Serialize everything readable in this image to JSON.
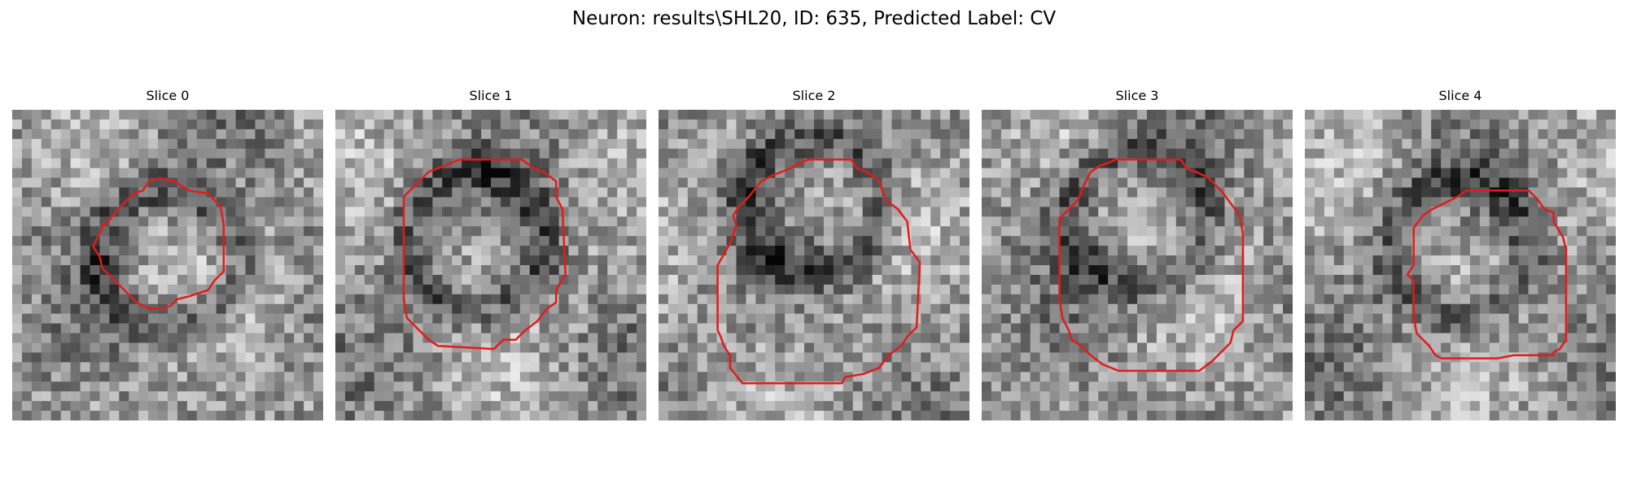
{
  "figure": {
    "title": "Neuron: results\\SHL20, ID: 635, Predicted Label: CV",
    "contour_color": "#e31b1b"
  },
  "panels": [
    {
      "title": "Slice 0",
      "seed": 11,
      "dark_center": [
        0.5,
        0.48
      ],
      "contour": [
        [
          0.47,
          0.22
        ],
        [
          0.52,
          0.23
        ],
        [
          0.57,
          0.26
        ],
        [
          0.63,
          0.27
        ],
        [
          0.67,
          0.31
        ],
        [
          0.68,
          0.37
        ],
        [
          0.68,
          0.52
        ],
        [
          0.65,
          0.55
        ],
        [
          0.63,
          0.58
        ],
        [
          0.57,
          0.6
        ],
        [
          0.53,
          0.61
        ],
        [
          0.51,
          0.63
        ],
        [
          0.48,
          0.64
        ],
        [
          0.44,
          0.64
        ],
        [
          0.4,
          0.62
        ],
        [
          0.37,
          0.59
        ],
        [
          0.34,
          0.56
        ],
        [
          0.29,
          0.51
        ],
        [
          0.28,
          0.47
        ],
        [
          0.26,
          0.44
        ],
        [
          0.27,
          0.42
        ],
        [
          0.29,
          0.38
        ],
        [
          0.29,
          0.37
        ],
        [
          0.3,
          0.37
        ],
        [
          0.34,
          0.32
        ],
        [
          0.39,
          0.27
        ],
        [
          0.42,
          0.26
        ],
        [
          0.44,
          0.23
        ]
      ]
    },
    {
      "title": "Slice 1",
      "seed": 23,
      "dark_center": [
        0.45,
        0.42
      ],
      "contour": [
        [
          0.4,
          0.16
        ],
        [
          0.6,
          0.16
        ],
        [
          0.64,
          0.19
        ],
        [
          0.67,
          0.2
        ],
        [
          0.71,
          0.23
        ],
        [
          0.71,
          0.28
        ],
        [
          0.73,
          0.32
        ],
        [
          0.74,
          0.53
        ],
        [
          0.71,
          0.58
        ],
        [
          0.71,
          0.62
        ],
        [
          0.68,
          0.64
        ],
        [
          0.65,
          0.68
        ],
        [
          0.61,
          0.71
        ],
        [
          0.58,
          0.74
        ],
        [
          0.54,
          0.74
        ],
        [
          0.54,
          0.74
        ],
        [
          0.51,
          0.77
        ],
        [
          0.33,
          0.76
        ],
        [
          0.33,
          0.76
        ],
        [
          0.3,
          0.74
        ],
        [
          0.27,
          0.71
        ],
        [
          0.23,
          0.67
        ],
        [
          0.22,
          0.61
        ],
        [
          0.22,
          0.28
        ],
        [
          0.3,
          0.2
        ],
        [
          0.35,
          0.18
        ]
      ]
    },
    {
      "title": "Slice 2",
      "seed": 37,
      "dark_center": [
        0.5,
        0.3
      ],
      "contour": [
        [
          0.48,
          0.16
        ],
        [
          0.62,
          0.16
        ],
        [
          0.64,
          0.19
        ],
        [
          0.67,
          0.2
        ],
        [
          0.71,
          0.23
        ],
        [
          0.73,
          0.29
        ],
        [
          0.77,
          0.32
        ],
        [
          0.8,
          0.36
        ],
        [
          0.81,
          0.45
        ],
        [
          0.84,
          0.49
        ],
        [
          0.83,
          0.7
        ],
        [
          0.8,
          0.73
        ],
        [
          0.78,
          0.76
        ],
        [
          0.74,
          0.79
        ],
        [
          0.71,
          0.83
        ],
        [
          0.66,
          0.85
        ],
        [
          0.6,
          0.86
        ],
        [
          0.59,
          0.88
        ],
        [
          0.27,
          0.88
        ],
        [
          0.23,
          0.83
        ],
        [
          0.23,
          0.79
        ],
        [
          0.21,
          0.76
        ],
        [
          0.2,
          0.73
        ],
        [
          0.19,
          0.71
        ],
        [
          0.19,
          0.5
        ],
        [
          0.23,
          0.43
        ],
        [
          0.25,
          0.37
        ],
        [
          0.24,
          0.34
        ],
        [
          0.26,
          0.31
        ],
        [
          0.29,
          0.28
        ],
        [
          0.33,
          0.23
        ],
        [
          0.37,
          0.21
        ],
        [
          0.42,
          0.19
        ]
      ]
    },
    {
      "title": "Slice 3",
      "seed": 53,
      "dark_center": [
        0.5,
        0.35
      ],
      "contour": [
        [
          0.43,
          0.16
        ],
        [
          0.64,
          0.16
        ],
        [
          0.66,
          0.19
        ],
        [
          0.69,
          0.2
        ],
        [
          0.73,
          0.22
        ],
        [
          0.77,
          0.26
        ],
        [
          0.8,
          0.3
        ],
        [
          0.83,
          0.34
        ],
        [
          0.84,
          0.4
        ],
        [
          0.84,
          0.68
        ],
        [
          0.81,
          0.71
        ],
        [
          0.8,
          0.75
        ],
        [
          0.77,
          0.78
        ],
        [
          0.74,
          0.81
        ],
        [
          0.7,
          0.84
        ],
        [
          0.66,
          0.84
        ],
        [
          0.63,
          0.84
        ],
        [
          0.6,
          0.84
        ],
        [
          0.56,
          0.84
        ],
        [
          0.44,
          0.84
        ],
        [
          0.39,
          0.82
        ],
        [
          0.35,
          0.79
        ],
        [
          0.32,
          0.76
        ],
        [
          0.29,
          0.74
        ],
        [
          0.28,
          0.71
        ],
        [
          0.26,
          0.67
        ],
        [
          0.25,
          0.61
        ],
        [
          0.25,
          0.35
        ],
        [
          0.28,
          0.32
        ],
        [
          0.31,
          0.29
        ],
        [
          0.33,
          0.24
        ],
        [
          0.35,
          0.2
        ],
        [
          0.38,
          0.18
        ],
        [
          0.41,
          0.17
        ]
      ]
    },
    {
      "title": "Slice 4",
      "seed": 71,
      "dark_center": [
        0.5,
        0.45
      ],
      "contour": [
        [
          0.52,
          0.26
        ],
        [
          0.72,
          0.26
        ],
        [
          0.75,
          0.29
        ],
        [
          0.77,
          0.32
        ],
        [
          0.8,
          0.33
        ],
        [
          0.8,
          0.36
        ],
        [
          0.83,
          0.41
        ],
        [
          0.84,
          0.45
        ],
        [
          0.84,
          0.52
        ],
        [
          0.84,
          0.74
        ],
        [
          0.82,
          0.77
        ],
        [
          0.8,
          0.78
        ],
        [
          0.8,
          0.79
        ],
        [
          0.68,
          0.79
        ],
        [
          0.67,
          0.79
        ],
        [
          0.62,
          0.8
        ],
        [
          0.44,
          0.8
        ],
        [
          0.42,
          0.79
        ],
        [
          0.4,
          0.76
        ],
        [
          0.37,
          0.73
        ],
        [
          0.36,
          0.72
        ],
        [
          0.35,
          0.67
        ],
        [
          0.35,
          0.55
        ],
        [
          0.33,
          0.53
        ],
        [
          0.35,
          0.5
        ],
        [
          0.35,
          0.38
        ],
        [
          0.38,
          0.34
        ],
        [
          0.41,
          0.32
        ],
        [
          0.45,
          0.3
        ],
        [
          0.49,
          0.28
        ]
      ]
    }
  ]
}
